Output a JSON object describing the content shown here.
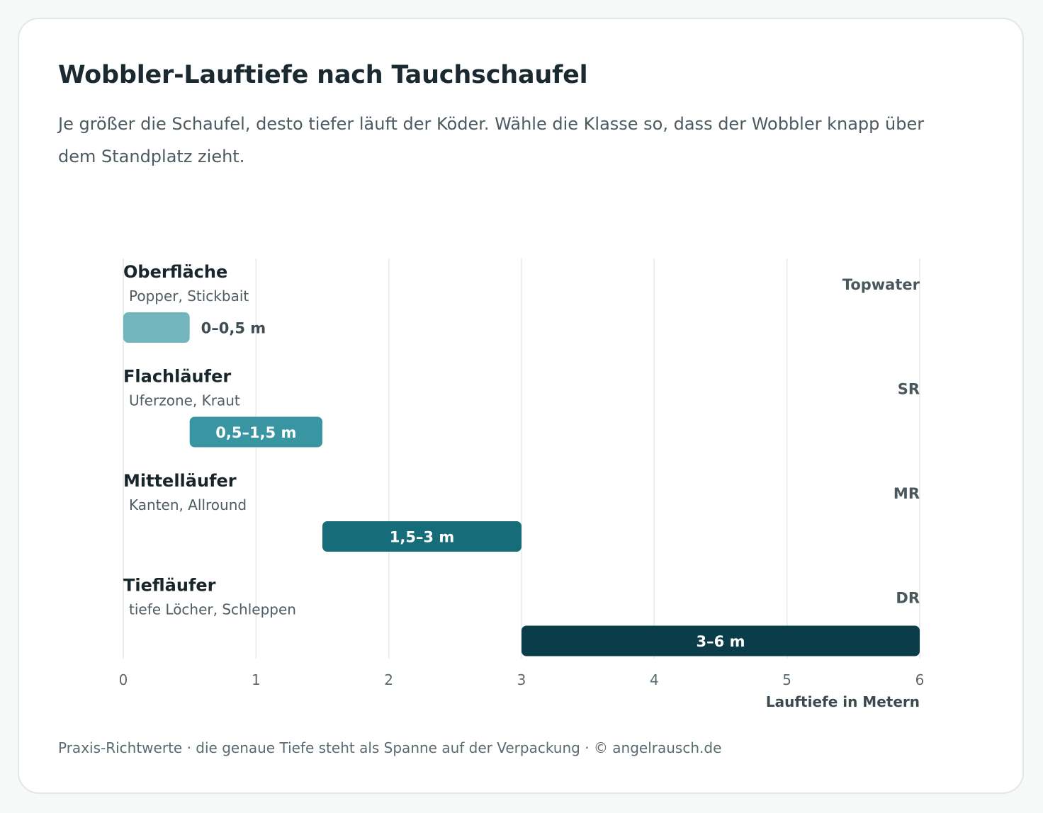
{
  "card": {
    "title": "Wobbler-Lauftiefe nach Tauchschaufel",
    "subtitle": "Je größer die Schaufel, desto tiefer läuft der Köder. Wähle die Klasse so, dass der Wobbler knapp über dem Standplatz zieht.",
    "footer": "Praxis-Richtwerte · die genaue Tiefe steht als Spanne auf der Verpackung · © angelrausch.de"
  },
  "chart_data": {
    "type": "bar",
    "orientation": "horizontal-range",
    "title": "Wobbler-Lauftiefe nach Tauchschaufel",
    "xlabel": "Lauftiefe in Metern",
    "ylabel": "",
    "xlim": [
      0,
      6
    ],
    "xticks": [
      "0",
      "1",
      "2",
      "3",
      "4",
      "5",
      "6"
    ],
    "grid": true,
    "categories": [
      {
        "name": "Oberfläche",
        "use": "Popper, Stickbait",
        "code": "Topwater",
        "start": 0,
        "end": 0.5,
        "label": "0–0,5 m",
        "color": "#72b5bd",
        "label_color": "#3f4d53",
        "label_outside": true
      },
      {
        "name": "Flachläufer",
        "use": "Uferzone, Kraut",
        "code": "SR",
        "start": 0.5,
        "end": 1.5,
        "label": "0,5–1,5 m",
        "color": "#3a95a2",
        "label_color": "#ffffff",
        "label_outside": false
      },
      {
        "name": "Mittelläufer",
        "use": "Kanten, Allround",
        "code": "MR",
        "start": 1.5,
        "end": 3,
        "label": "1,5–3 m",
        "color": "#176c7a",
        "label_color": "#ffffff",
        "label_outside": false
      },
      {
        "name": "Tiefläufer",
        "use": "tiefe Löcher, Schleppen",
        "code": "DR",
        "start": 3,
        "end": 6,
        "label": "3–6 m",
        "color": "#0a3d49",
        "label_color": "#ffffff",
        "label_outside": false
      }
    ]
  }
}
